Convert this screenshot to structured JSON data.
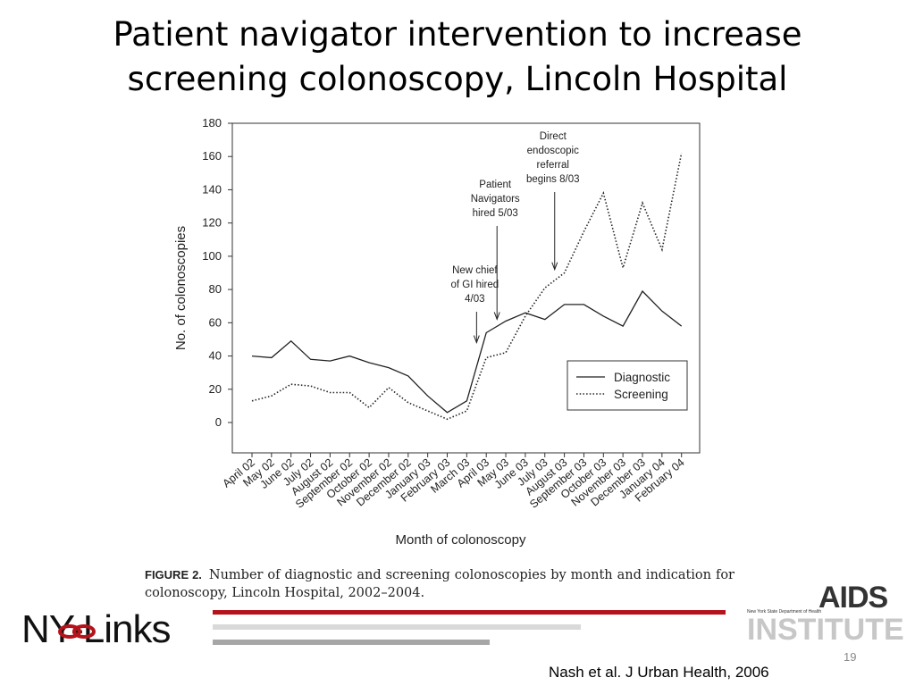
{
  "slide": {
    "title_line1": "Patient navigator intervention to increase",
    "title_line2": "screening colonoscopy, Lincoln Hospital",
    "caption_fig": "FIGURE 2.",
    "caption_text": "Number of diagnostic and screening colonoscopies by month and indication for colonoscopy, Lincoln Hospital, 2002–2004.",
    "logo_left": "NY-Links",
    "logo_right_dept": "New York State Department of Health",
    "logo_right_word1": "AIDS",
    "logo_right_word2": "INSTITUTE",
    "page_number": "19",
    "citation": "Nash et al. J Urban Health, 2006",
    "colors": {
      "accent_red": "#b5121b",
      "bar_gray": "#d9d9d9",
      "bar_dark": "#a6a6a6"
    }
  },
  "chart_data": {
    "type": "line",
    "xlabel": "Month of colonoscopy",
    "ylabel": "No. of colonoscopies",
    "ylim": [
      0,
      180
    ],
    "yticks": [
      0,
      20,
      40,
      60,
      80,
      100,
      120,
      140,
      160,
      180
    ],
    "categories": [
      "April 02",
      "May 02",
      "June 02",
      "July 02",
      "August 02",
      "September 02",
      "October 02",
      "November 02",
      "December 02",
      "January 03",
      "February 03",
      "March 03",
      "April 03",
      "May 03",
      "June 03",
      "July 03",
      "August 03",
      "September 03",
      "October 03",
      "November 03",
      "December 03",
      "January 04",
      "February 04"
    ],
    "series": [
      {
        "name": "Diagnostic",
        "style": "solid",
        "values": [
          40,
          39,
          49,
          38,
          37,
          40,
          36,
          33,
          28,
          16,
          6,
          13,
          54,
          61,
          66,
          62,
          71,
          71,
          64,
          58,
          79,
          67,
          58
        ]
      },
      {
        "name": "Screening",
        "style": "dotted",
        "values": [
          13,
          16,
          23,
          22,
          18,
          18,
          9,
          21,
          12,
          7,
          2,
          7,
          39,
          42,
          64,
          81,
          90,
          115,
          138,
          93,
          132,
          104,
          162
        ]
      }
    ],
    "annotations": [
      {
        "lines": [
          "New chief",
          "of GI hired",
          "4/03"
        ],
        "x_category": "March 03",
        "arrow_to_y": 47
      },
      {
        "lines": [
          "Patient",
          "Navigators",
          "hired 5/03"
        ],
        "x_category": "April 03",
        "arrow_to_y": 61
      },
      {
        "lines": [
          "Direct",
          "endoscopic",
          "referral",
          "begins 8/03"
        ],
        "x_category": "July 03",
        "arrow_to_y": 91
      }
    ],
    "legend_position": "bottom-right"
  }
}
